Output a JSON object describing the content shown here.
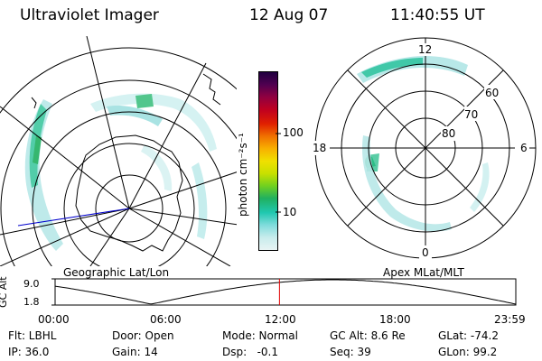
{
  "header": {
    "title": "Ultraviolet Imager",
    "date": "12 Aug 07",
    "time": "11:40:55 UT"
  },
  "colorbar": {
    "unit_label": "photon cm⁻²s⁻¹",
    "tick_100": "100",
    "tick_10": "10",
    "colors": [
      "#e8f4f4",
      "#c8ecec",
      "#80dcdc",
      "#20c8b0",
      "#20b060",
      "#70d020",
      "#c8e000",
      "#f0e000",
      "#f8b000",
      "#f07000",
      "#e02000",
      "#c00020",
      "#900040",
      "#500050",
      "#200040"
    ]
  },
  "left_panel": {
    "label": "Geographic Lat/Lon"
  },
  "right_panel": {
    "label": "Apex MLat/MLT",
    "mlt_12": "12",
    "mlt_18": "18",
    "mlt_6": "6",
    "mlt_0": "0",
    "lat_60": "60",
    "lat_70": "70",
    "lat_80": "80"
  },
  "timeline": {
    "y_label": "GC Alt",
    "y_max": "9.0",
    "y_min": "1.8",
    "ticks": [
      "00:00",
      "06:00",
      "12:00",
      "18:00",
      "23:59"
    ],
    "marker_color": "#e00000",
    "current_fraction": 0.487
  },
  "footer": {
    "filter": "Flt: LBHL",
    "door": "Door: Open",
    "mode": "Mode: Normal",
    "gc_alt": "GC Alt: 8.6 Re",
    "glat": "GLat: -74.2",
    "ip": "IP: 36.0",
    "gain": "Gain: 14",
    "dsp": "Dsp:   -0.1",
    "seq": "Seq: 39",
    "glon": "GLon: 99.2"
  }
}
